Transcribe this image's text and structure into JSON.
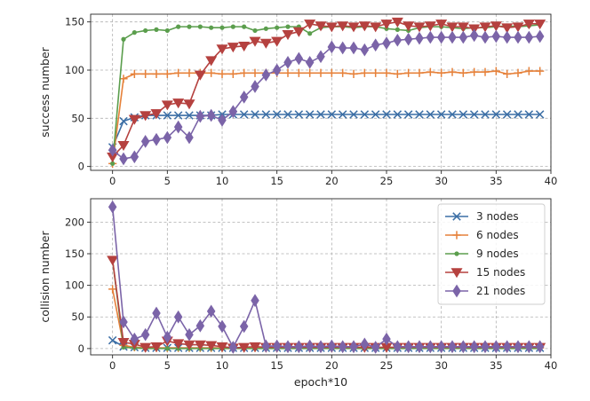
{
  "chart_data": [
    {
      "type": "line",
      "title": "",
      "xlabel": "",
      "ylabel": "success number",
      "xlim": [
        -2,
        40
      ],
      "ylim": [
        -4,
        158
      ],
      "x_ticks": [
        0,
        5,
        10,
        15,
        20,
        25,
        30,
        35,
        40
      ],
      "y_ticks": [
        0,
        50,
        100,
        150
      ],
      "grid": true,
      "x": [
        0,
        1,
        2,
        3,
        4,
        5,
        6,
        7,
        8,
        9,
        10,
        11,
        12,
        13,
        14,
        15,
        16,
        17,
        18,
        19,
        20,
        21,
        22,
        23,
        24,
        25,
        26,
        27,
        28,
        29,
        30,
        31,
        32,
        33,
        34,
        35,
        36,
        37,
        38,
        39
      ],
      "series": [
        {
          "name": "3 nodes",
          "color": "#3b6ea5",
          "marker": "x",
          "values": [
            20,
            47,
            51,
            53,
            53,
            53,
            53,
            53,
            53,
            53,
            54,
            54,
            54,
            54,
            54,
            54,
            54,
            54,
            54,
            54,
            54,
            54,
            54,
            54,
            54,
            54,
            54,
            54,
            54,
            54,
            54,
            54,
            54,
            54,
            54,
            54,
            54,
            54,
            54,
            54
          ]
        },
        {
          "name": "6 nodes",
          "color": "#e6813a",
          "marker": "plus",
          "values": [
            3,
            91,
            96,
            96,
            96,
            96,
            97,
            97,
            97,
            97,
            96,
            96,
            97,
            97,
            97,
            97,
            97,
            97,
            97,
            97,
            97,
            97,
            96,
            97,
            97,
            97,
            96,
            97,
            97,
            98,
            97,
            98,
            97,
            98,
            98,
            99,
            96,
            97,
            99,
            99
          ]
        },
        {
          "name": "9 nodes",
          "color": "#5b9e4d",
          "marker": "dot",
          "values": [
            3,
            132,
            139,
            141,
            142,
            141,
            145,
            145,
            145,
            144,
            144,
            145,
            145,
            141,
            143,
            144,
            145,
            145,
            138,
            144,
            145,
            145,
            144,
            145,
            145,
            143,
            142,
            141,
            144,
            145,
            145,
            144,
            143,
            144,
            144,
            145,
            146,
            145,
            146,
            147
          ]
        },
        {
          "name": "15 nodes",
          "color": "#b5413f",
          "marker": "triangle-down",
          "values": [
            10,
            22,
            49,
            53,
            55,
            64,
            66,
            65,
            95,
            110,
            122,
            124,
            125,
            130,
            128,
            130,
            137,
            140,
            148,
            146,
            145,
            146,
            145,
            146,
            145,
            148,
            150,
            146,
            145,
            146,
            148,
            145,
            145,
            143,
            145,
            146,
            144,
            145,
            148,
            148
          ]
        },
        {
          "name": "21 nodes",
          "color": "#7b64a8",
          "marker": "diamond",
          "values": [
            17,
            8,
            10,
            26,
            28,
            30,
            41,
            30,
            52,
            53,
            48,
            57,
            72,
            83,
            95,
            100,
            108,
            112,
            108,
            114,
            124,
            123,
            123,
            121,
            126,
            128,
            131,
            132,
            133,
            134,
            134,
            134,
            134,
            136,
            134,
            135,
            134,
            134,
            134,
            135
          ]
        }
      ]
    },
    {
      "type": "line",
      "title": "",
      "xlabel": "epoch*10",
      "ylabel": "collision number",
      "xlim": [
        -2,
        40
      ],
      "ylim": [
        -10,
        237
      ],
      "x_ticks": [
        0,
        5,
        10,
        15,
        20,
        25,
        30,
        35,
        40
      ],
      "y_ticks": [
        0,
        50,
        100,
        150,
        200
      ],
      "grid": true,
      "legend_position": "top-right",
      "x": [
        0,
        1,
        2,
        3,
        4,
        5,
        6,
        7,
        8,
        9,
        10,
        11,
        12,
        13,
        14,
        15,
        16,
        17,
        18,
        19,
        20,
        21,
        22,
        23,
        24,
        25,
        26,
        27,
        28,
        29,
        30,
        31,
        32,
        33,
        34,
        35,
        36,
        37,
        38,
        39
      ],
      "series": [
        {
          "name": "3 nodes",
          "color": "#3b6ea5",
          "marker": "x",
          "values": [
            13,
            3,
            2,
            1,
            1,
            1,
            1,
            1,
            1,
            1,
            1,
            1,
            1,
            1,
            1,
            1,
            1,
            1,
            1,
            1,
            1,
            1,
            1,
            1,
            1,
            1,
            1,
            1,
            1,
            1,
            1,
            1,
            1,
            1,
            1,
            1,
            1,
            1,
            1,
            1
          ]
        },
        {
          "name": "6 nodes",
          "color": "#e6813a",
          "marker": "plus",
          "values": [
            94,
            5,
            2,
            1,
            1,
            1,
            1,
            1,
            1,
            1,
            1,
            1,
            1,
            1,
            1,
            1,
            1,
            1,
            1,
            1,
            1,
            1,
            1,
            1,
            1,
            1,
            1,
            1,
            1,
            1,
            1,
            1,
            1,
            1,
            1,
            1,
            1,
            1,
            1,
            1
          ]
        },
        {
          "name": "9 nodes",
          "color": "#5b9e4d",
          "marker": "dot",
          "values": [
            140,
            2,
            1,
            0,
            0,
            0,
            0,
            0,
            0,
            0,
            0,
            0,
            0,
            0,
            0,
            0,
            0,
            0,
            0,
            0,
            0,
            0,
            0,
            0,
            0,
            0,
            0,
            0,
            0,
            0,
            0,
            0,
            0,
            0,
            0,
            0,
            0,
            0,
            0,
            0
          ]
        },
        {
          "name": "15 nodes",
          "color": "#b5413f",
          "marker": "triangle-down",
          "values": [
            140,
            10,
            7,
            2,
            3,
            12,
            8,
            6,
            6,
            5,
            3,
            1,
            2,
            3,
            2,
            2,
            2,
            2,
            2,
            2,
            2,
            2,
            2,
            2,
            2,
            2,
            2,
            2,
            2,
            2,
            2,
            2,
            2,
            2,
            2,
            2,
            2,
            2,
            2,
            2
          ]
        },
        {
          "name": "21 nodes",
          "color": "#7b64a8",
          "marker": "diamond",
          "values": [
            224,
            42,
            15,
            22,
            56,
            18,
            50,
            22,
            36,
            59,
            35,
            2,
            35,
            76,
            4,
            4,
            3,
            3,
            4,
            3,
            4,
            3,
            3,
            7,
            2,
            15,
            3,
            3,
            3,
            3,
            3,
            3,
            3,
            3,
            3,
            3,
            3,
            3,
            3,
            3
          ]
        }
      ]
    }
  ]
}
